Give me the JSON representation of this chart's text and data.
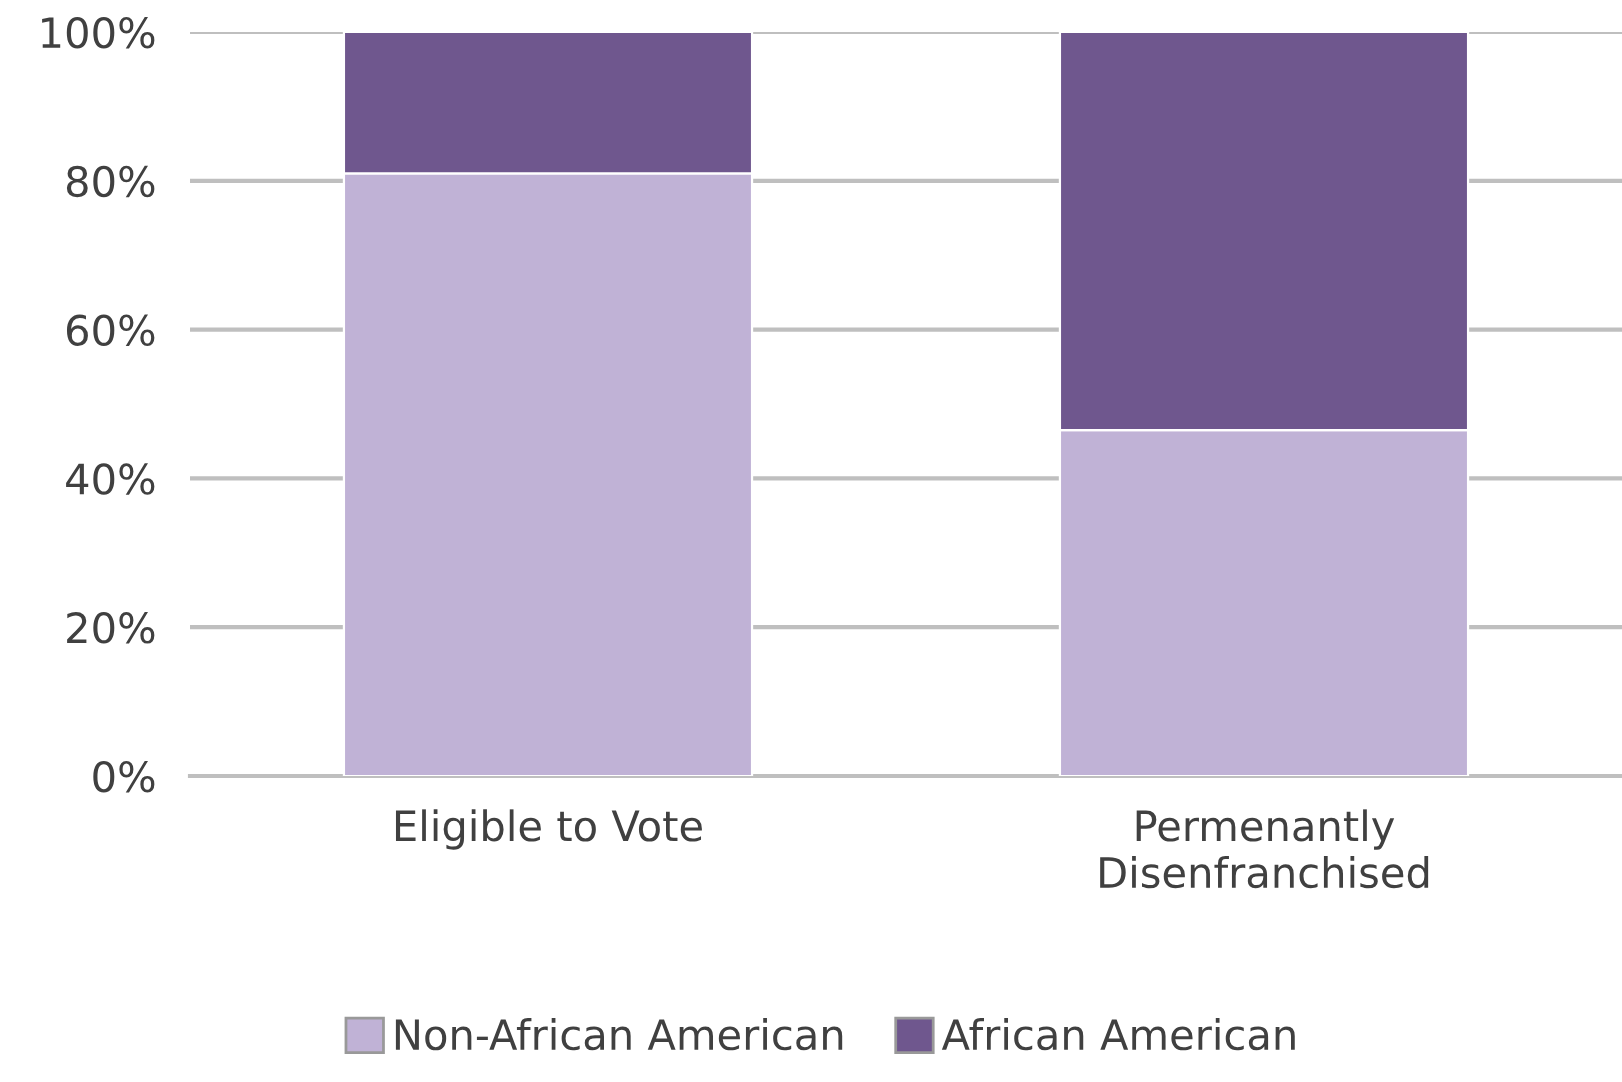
{
  "chart_data": {
    "type": "bar",
    "stacked": true,
    "categories": [
      "Eligible to Vote",
      "Permenantly\nDisenfranchised"
    ],
    "series": [
      {
        "name": "Non-African American",
        "color": "#c0b2d6",
        "values": [
          81,
          46.5
        ]
      },
      {
        "name": "African American",
        "color": "#6f578e",
        "values": [
          19,
          53.5
        ]
      }
    ],
    "ylim": [
      0,
      100
    ],
    "yticks": [
      {
        "value": 0,
        "label": "0%"
      },
      {
        "value": 20,
        "label": "20%"
      },
      {
        "value": 40,
        "label": "40%"
      },
      {
        "value": 60,
        "label": "60%"
      },
      {
        "value": 80,
        "label": "80%"
      },
      {
        "value": 100,
        "label": "100%"
      }
    ],
    "grid": "y",
    "legend": "bottom"
  }
}
